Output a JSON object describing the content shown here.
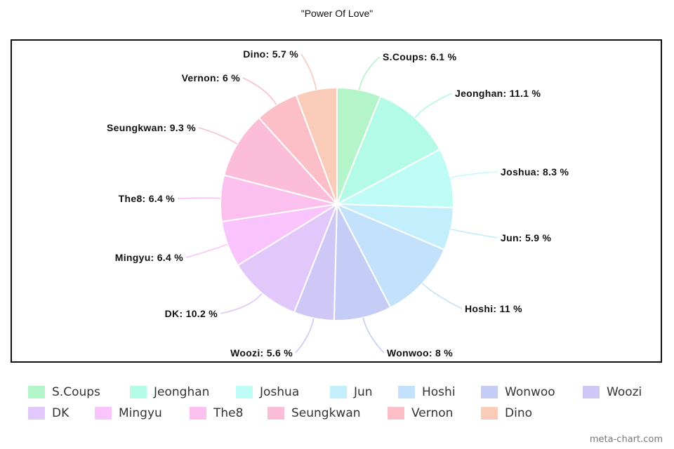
{
  "chart_data": {
    "type": "pie",
    "title": "\"Power Of Love\"",
    "legend_position": "bottom",
    "slices": [
      {
        "name": "S.Coups",
        "value": 6.1,
        "label": "S.Coups: 6.1 %",
        "color": "#b3f5c9"
      },
      {
        "name": "Jeonghan",
        "value": 11.1,
        "label": "Jeonghan: 11.1 %",
        "color": "#b3fbe6"
      },
      {
        "name": "Joshua",
        "value": 8.3,
        "label": "Joshua: 8.3 %",
        "color": "#c0fcf6"
      },
      {
        "name": "Jun",
        "value": 5.9,
        "label": "Jun: 5.9 %",
        "color": "#c3eefb"
      },
      {
        "name": "Hoshi",
        "value": 11,
        "label": "Hoshi: 11 %",
        "color": "#c4e1fb"
      },
      {
        "name": "Wonwoo",
        "value": 8,
        "label": "Wonwoo: 8 %",
        "color": "#c5cdf7"
      },
      {
        "name": "Woozi",
        "value": 5.6,
        "label": "Woozi: 5.6 %",
        "color": "#cfc7f6"
      },
      {
        "name": "DK",
        "value": 10.2,
        "label": "DK: 10.2 %",
        "color": "#e1c7fa"
      },
      {
        "name": "Mingyu",
        "value": 6.4,
        "label": "Mingyu: 6.4 %",
        "color": "#f8c4fb"
      },
      {
        "name": "The8",
        "value": 6.4,
        "label": "The8: 6.4 %",
        "color": "#fcc0ee"
      },
      {
        "name": "Seungkwan",
        "value": 9.3,
        "label": "Seungkwan: 9.3 %",
        "color": "#fcbdd9"
      },
      {
        "name": "Vernon",
        "value": 6,
        "label": "Vernon: 6 %",
        "color": "#fcbfc7"
      },
      {
        "name": "Dino",
        "value": 5.7,
        "label": "Dino: 5.7 %",
        "color": "#fbcbba"
      }
    ]
  },
  "watermark": "meta-chart.com"
}
